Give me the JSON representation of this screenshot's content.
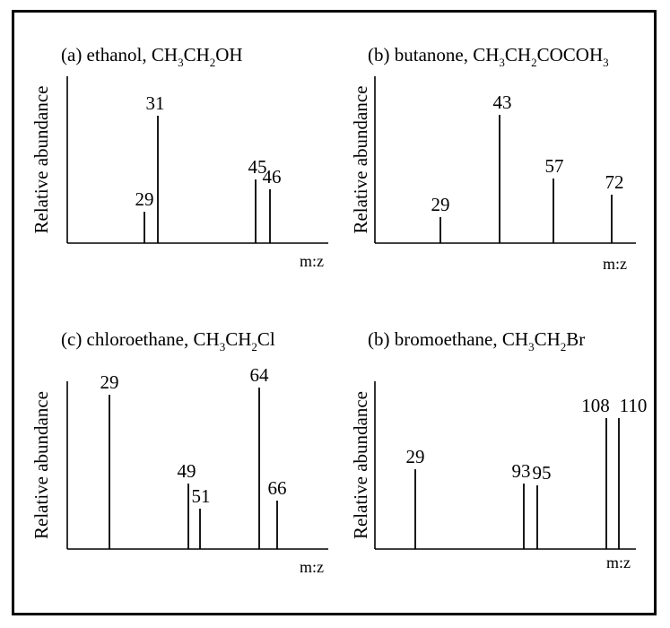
{
  "chart_data": [
    {
      "type": "bar",
      "title": {
        "prefix": "(a) ethanol, ",
        "formula": [
          [
            "CH",
            ""
          ],
          [
            "3",
            "sub"
          ],
          [
            "CH",
            ""
          ],
          [
            "2",
            "sub"
          ],
          [
            "OH",
            ""
          ]
        ]
      },
      "ylabel": "Relative abundance",
      "xlabel": "m:z",
      "x": [
        29,
        31,
        45,
        46
      ],
      "labels": [
        "29",
        "31",
        "45",
        "46"
      ],
      "values": [
        0.23,
        1.0,
        0.5,
        0.44
      ]
    },
    {
      "type": "bar",
      "title": {
        "prefix": "(b) butanone, ",
        "formula": [
          [
            "CH",
            ""
          ],
          [
            "3",
            "sub"
          ],
          [
            "CH",
            ""
          ],
          [
            "2",
            "sub"
          ],
          [
            "COCOH",
            ""
          ],
          [
            "3",
            "sub"
          ]
        ]
      },
      "ylabel": "Relative abundance",
      "xlabel": "m:z",
      "x": [
        29,
        43,
        57,
        72
      ],
      "labels": [
        "29",
        "43",
        "57",
        "72"
      ],
      "values": [
        0.24,
        1.0,
        0.49,
        0.38
      ]
    },
    {
      "type": "bar",
      "title": {
        "prefix": "(c) chloroethane, ",
        "formula": [
          [
            "CH",
            ""
          ],
          [
            "3",
            "sub"
          ],
          [
            "CH",
            ""
          ],
          [
            "2",
            "sub"
          ],
          [
            "Cl",
            ""
          ]
        ]
      },
      "ylabel": "Relative abundance",
      "xlabel": "m:z",
      "x": [
        29,
        49,
        51,
        64,
        66
      ],
      "labels": [
        "29",
        "49",
        "51",
        "64",
        "66"
      ],
      "values": [
        0.83,
        0.39,
        0.24,
        1.0,
        0.31
      ]
    },
    {
      "type": "bar",
      "title": {
        "prefix": "(b) bromoethane, ",
        "formula": [
          [
            "CH",
            ""
          ],
          [
            "3",
            "sub"
          ],
          [
            "CH",
            ""
          ],
          [
            "2",
            "sub"
          ],
          [
            "Br",
            ""
          ]
        ]
      },
      "ylabel": "Relative abundance",
      "xlabel": "m:z",
      "x": [
        29,
        93,
        95,
        108,
        110
      ],
      "labels": [
        "29",
        "93",
        "95",
        "108",
        "110"
      ],
      "values": [
        0.52,
        0.44,
        0.45,
        1.0,
        1.0
      ]
    }
  ]
}
